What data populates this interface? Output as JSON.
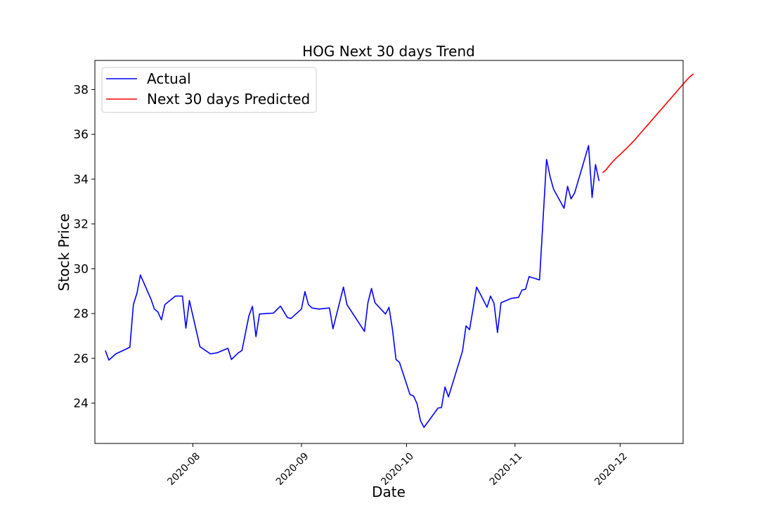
{
  "chart_data": {
    "type": "line",
    "title": "HOG Next 30 days Trend",
    "xlabel": "Date",
    "ylabel": "Stock Price",
    "xlim": [
      "2020-07-04",
      "2020-12-19"
    ],
    "ylim": [
      22.2,
      39.3
    ],
    "xticks": [
      "2020-08",
      "2020-09",
      "2020-10",
      "2020-11",
      "2020-12"
    ],
    "yticks": [
      24,
      26,
      28,
      30,
      32,
      34,
      36,
      38
    ],
    "grid": false,
    "legend_position": "top-left",
    "series": [
      {
        "name": "Actual",
        "color": "#0000ff",
        "points": [
          [
            "2020-07-07",
            26.35
          ],
          [
            "2020-07-08",
            25.92
          ],
          [
            "2020-07-10",
            26.2
          ],
          [
            "2020-07-13",
            26.42
          ],
          [
            "2020-07-14",
            26.5
          ],
          [
            "2020-07-15",
            28.4
          ],
          [
            "2020-07-16",
            28.9
          ],
          [
            "2020-07-17",
            29.72
          ],
          [
            "2020-07-20",
            28.65
          ],
          [
            "2020-07-21",
            28.2
          ],
          [
            "2020-07-22",
            28.07
          ],
          [
            "2020-07-23",
            27.72
          ],
          [
            "2020-07-24",
            28.4
          ],
          [
            "2020-07-27",
            28.78
          ],
          [
            "2020-07-28",
            28.78
          ],
          [
            "2020-07-29",
            28.78
          ],
          [
            "2020-07-30",
            27.35
          ],
          [
            "2020-07-31",
            28.58
          ],
          [
            "2020-08-03",
            26.52
          ],
          [
            "2020-08-06",
            26.2
          ],
          [
            "2020-08-08",
            26.25
          ],
          [
            "2020-08-11",
            26.45
          ],
          [
            "2020-08-12",
            25.95
          ],
          [
            "2020-08-14",
            26.25
          ],
          [
            "2020-08-15",
            26.35
          ],
          [
            "2020-08-17",
            27.9
          ],
          [
            "2020-08-18",
            28.32
          ],
          [
            "2020-08-19",
            26.97
          ],
          [
            "2020-08-20",
            27.98
          ],
          [
            "2020-08-24",
            28.02
          ],
          [
            "2020-08-26",
            28.33
          ],
          [
            "2020-08-28",
            27.82
          ],
          [
            "2020-08-29",
            27.78
          ],
          [
            "2020-09-01",
            28.2
          ],
          [
            "2020-09-02",
            28.98
          ],
          [
            "2020-09-03",
            28.4
          ],
          [
            "2020-09-04",
            28.25
          ],
          [
            "2020-09-06",
            28.2
          ],
          [
            "2020-09-09",
            28.25
          ],
          [
            "2020-09-10",
            27.32
          ],
          [
            "2020-09-13",
            29.18
          ],
          [
            "2020-09-14",
            28.4
          ],
          [
            "2020-09-19",
            27.2
          ],
          [
            "2020-09-20",
            28.5
          ],
          [
            "2020-09-21",
            29.12
          ],
          [
            "2020-09-22",
            28.48
          ],
          [
            "2020-09-25",
            27.98
          ],
          [
            "2020-09-26",
            28.28
          ],
          [
            "2020-09-27",
            27.28
          ],
          [
            "2020-09-28",
            25.95
          ],
          [
            "2020-09-29",
            25.82
          ],
          [
            "2020-10-02",
            24.38
          ],
          [
            "2020-10-03",
            24.32
          ],
          [
            "2020-10-04",
            23.98
          ],
          [
            "2020-10-05",
            23.22
          ],
          [
            "2020-10-06",
            22.92
          ],
          [
            "2020-10-10",
            23.78
          ],
          [
            "2020-10-11",
            23.8
          ],
          [
            "2020-10-12",
            24.72
          ],
          [
            "2020-10-13",
            24.28
          ],
          [
            "2020-10-17",
            26.32
          ],
          [
            "2020-10-18",
            27.45
          ],
          [
            "2020-10-19",
            27.28
          ],
          [
            "2020-10-20",
            28.2
          ],
          [
            "2020-10-21",
            29.18
          ],
          [
            "2020-10-22",
            28.9
          ],
          [
            "2020-10-24",
            28.28
          ],
          [
            "2020-10-25",
            28.78
          ],
          [
            "2020-10-26",
            28.45
          ],
          [
            "2020-10-27",
            27.15
          ],
          [
            "2020-10-28",
            28.48
          ],
          [
            "2020-10-31",
            28.68
          ],
          [
            "2020-11-01",
            28.7
          ],
          [
            "2020-11-02",
            28.72
          ],
          [
            "2020-11-03",
            29.05
          ],
          [
            "2020-11-04",
            29.08
          ],
          [
            "2020-11-05",
            29.65
          ],
          [
            "2020-11-08",
            29.5
          ],
          [
            "2020-11-10",
            34.88
          ],
          [
            "2020-11-11",
            34.12
          ],
          [
            "2020-11-12",
            33.55
          ],
          [
            "2020-11-15",
            32.7
          ],
          [
            "2020-11-16",
            33.68
          ],
          [
            "2020-11-17",
            33.12
          ],
          [
            "2020-11-18",
            33.38
          ],
          [
            "2020-11-22",
            35.5
          ],
          [
            "2020-11-23",
            33.18
          ],
          [
            "2020-11-24",
            34.65
          ],
          [
            "2020-11-25",
            33.92
          ]
        ]
      },
      {
        "name": "Next 30 days Predicted",
        "color": "#ff0000",
        "points": [
          [
            "2020-11-26",
            34.28
          ],
          [
            "2020-11-27",
            34.42
          ],
          [
            "2020-11-28",
            34.62
          ],
          [
            "2020-11-29",
            34.8
          ],
          [
            "2020-11-30",
            34.95
          ],
          [
            "2020-12-01",
            35.1
          ],
          [
            "2020-12-02",
            35.25
          ],
          [
            "2020-12-03",
            35.4
          ],
          [
            "2020-12-04",
            35.56
          ],
          [
            "2020-12-05",
            35.72
          ],
          [
            "2020-12-06",
            35.9
          ],
          [
            "2020-12-07",
            36.08
          ],
          [
            "2020-12-08",
            36.26
          ],
          [
            "2020-12-09",
            36.44
          ],
          [
            "2020-12-10",
            36.62
          ],
          [
            "2020-12-11",
            36.8
          ],
          [
            "2020-12-12",
            36.98
          ],
          [
            "2020-12-13",
            37.16
          ],
          [
            "2020-12-14",
            37.34
          ],
          [
            "2020-12-15",
            37.52
          ],
          [
            "2020-12-16",
            37.7
          ],
          [
            "2020-12-17",
            37.88
          ],
          [
            "2020-12-18",
            38.06
          ],
          [
            "2020-12-19",
            38.24
          ],
          [
            "2020-12-20",
            38.42
          ],
          [
            "2020-12-21",
            38.58
          ],
          [
            "2020-12-22",
            38.7
          ]
        ]
      }
    ]
  }
}
